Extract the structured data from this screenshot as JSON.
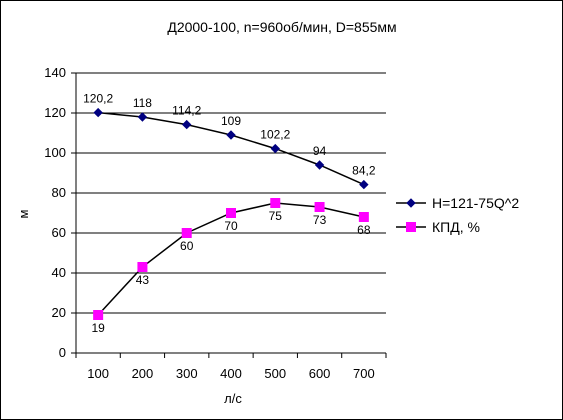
{
  "chart_data": {
    "type": "line",
    "title": "Д2000-100,  n=960об/мин,  D=855мм",
    "xlabel": "л/с",
    "ylabel": "м",
    "categories": [
      "100",
      "200",
      "300",
      "400",
      "500",
      "600",
      "700"
    ],
    "ylim": [
      0,
      140
    ],
    "y_ticks": [
      0,
      20,
      40,
      60,
      80,
      100,
      120,
      140
    ],
    "grid": "horizontal",
    "legend_position": "right",
    "series": [
      {
        "name": "H=121-75Q^2",
        "values": [
          120.2,
          118,
          114.2,
          109,
          102.2,
          94,
          84.2
        ],
        "labels": [
          "120,2",
          "118",
          "114,2",
          "109",
          "102,2",
          "94",
          "84,2"
        ],
        "color": "#000080",
        "marker": "diamond"
      },
      {
        "name": "КПД, %",
        "values": [
          19,
          43,
          60,
          70,
          75,
          73,
          68
        ],
        "labels": [
          "19",
          "43",
          "60",
          "70",
          "75",
          "73",
          "68"
        ],
        "color": "#FF00FF",
        "marker": "square"
      }
    ]
  }
}
